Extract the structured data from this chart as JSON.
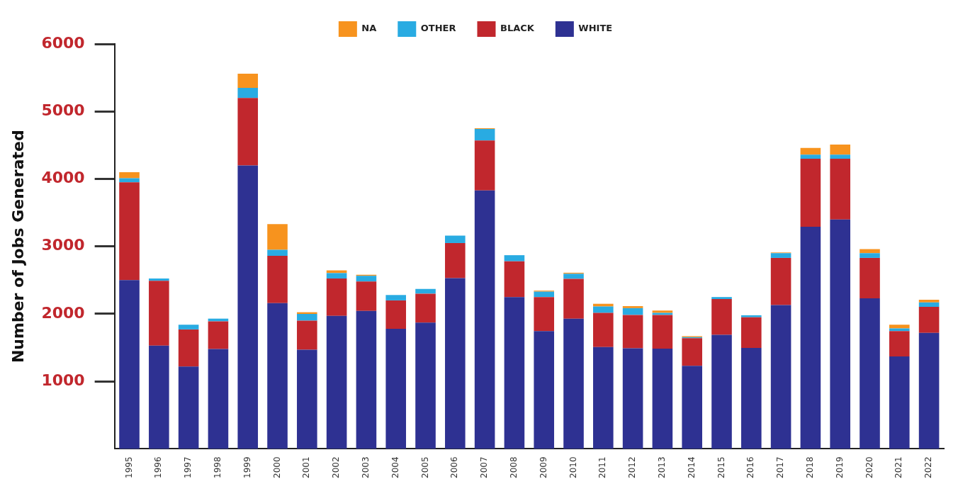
{
  "chart_data": {
    "type": "bar",
    "stacked": true,
    "ylabel": "Number of Jobs Generated",
    "categories": [
      "1995",
      "1996",
      "1997",
      "1998",
      "1999",
      "2000",
      "2001",
      "2002",
      "2003",
      "2004",
      "2005",
      "2006",
      "2007",
      "2008",
      "2009",
      "2010",
      "2011",
      "2012",
      "2013",
      "2014",
      "2015",
      "2016",
      "2017",
      "2018",
      "2019",
      "2020",
      "2021",
      "2022"
    ],
    "series": [
      {
        "name": "WHITE",
        "color": "#2e3192",
        "values": [
          2500,
          1530,
          1220,
          1480,
          4200,
          2160,
          1470,
          1970,
          2045,
          1780,
          1870,
          2530,
          3830,
          2250,
          1745,
          1930,
          1510,
          1490,
          1485,
          1230,
          1690,
          1495,
          2130,
          3290,
          3400,
          2230,
          1370,
          1720
        ]
      },
      {
        "name": "BLACK",
        "color": "#c1272d",
        "values": [
          1450,
          960,
          550,
          410,
          1000,
          700,
          430,
          555,
          435,
          420,
          430,
          520,
          740,
          530,
          505,
          590,
          505,
          495,
          500,
          410,
          530,
          455,
          700,
          1010,
          900,
          600,
          375,
          385
        ]
      },
      {
        "name": "OTHER",
        "color": "#29abe2",
        "values": [
          60,
          35,
          70,
          40,
          150,
          90,
          100,
          80,
          85,
          80,
          70,
          110,
          170,
          90,
          80,
          75,
          95,
          100,
          30,
          15,
          30,
          30,
          70,
          60,
          60,
          70,
          40,
          65
        ]
      },
      {
        "name": "NA",
        "color": "#f7931e",
        "values": [
          90,
          0,
          0,
          0,
          210,
          380,
          25,
          40,
          15,
          0,
          0,
          0,
          10,
          0,
          15,
          15,
          40,
          30,
          35,
          15,
          0,
          0,
          10,
          100,
          150,
          60,
          55,
          40
        ]
      }
    ],
    "ylim": [
      0,
      6000
    ],
    "yticks": [
      1000,
      2000,
      3000,
      4000,
      5000,
      6000
    ],
    "grid": false,
    "legend": "top"
  }
}
